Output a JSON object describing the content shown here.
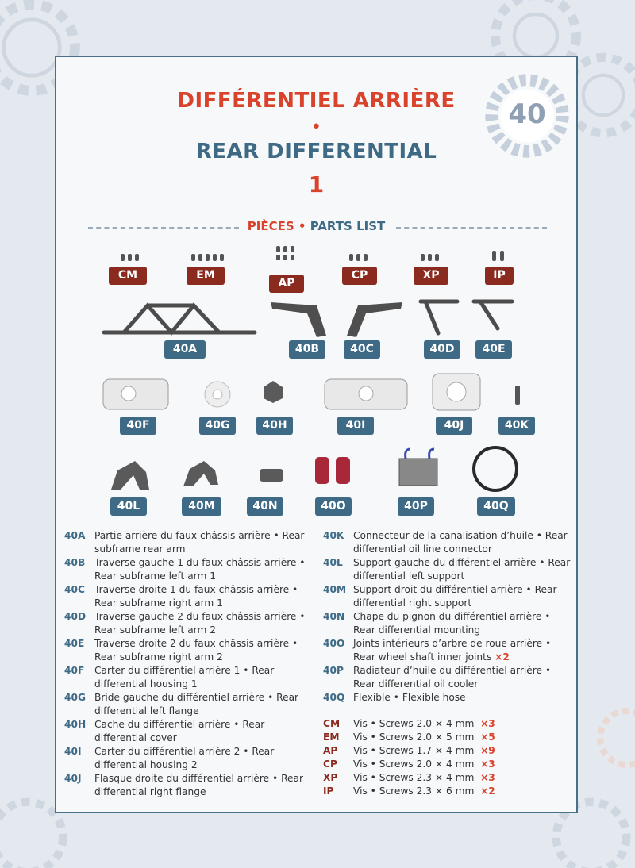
{
  "header": {
    "title_fr": "DIFFÉRENTIEL ARRIÈRE",
    "separator": "•",
    "title_en": "REAR DIFFERENTIAL",
    "part_number": "1",
    "issue_number": "40"
  },
  "parts_list": {
    "title_fr": "PIÈCES",
    "separator": "•",
    "title_en": "PARTS LIST"
  },
  "screw_tags": [
    "CM",
    "EM",
    "AP",
    "CP",
    "XP",
    "IP"
  ],
  "part_tags": [
    "40A",
    "40B",
    "40C",
    "40D",
    "40E",
    "40F",
    "40G",
    "40H",
    "40I",
    "40J",
    "40K",
    "40L",
    "40M",
    "40N",
    "40O",
    "40P",
    "40Q"
  ],
  "colors": {
    "accent_red": "#d9422b",
    "accent_blue": "#3e6a86",
    "screw_tag": "#8b2a1e"
  },
  "legend_left": [
    {
      "code": "40A",
      "text": "Partie arrière du faux châssis arrière • Rear subframe rear arm"
    },
    {
      "code": "40B",
      "text": "Traverse gauche 1 du faux châssis arrière • Rear subframe left arm 1"
    },
    {
      "code": "40C",
      "text": "Traverse droite 1 du faux châssis arrière • Rear subframe right arm 1"
    },
    {
      "code": "40D",
      "text": "Traverse gauche 2 du faux châssis arrière • Rear subframe left arm 2"
    },
    {
      "code": "40E",
      "text": "Traverse droite 2 du faux châssis arrière • Rear subframe right arm 2"
    },
    {
      "code": "40F",
      "text": "Carter du différentiel arrière 1 • Rear differential housing 1"
    },
    {
      "code": "40G",
      "text": "Bride gauche du différentiel arrière • Rear differential left flange"
    },
    {
      "code": "40H",
      "text": "Cache du différentiel arrière • Rear differential cover"
    },
    {
      "code": "40I",
      "text": "Carter du différentiel arrière 2 • Rear differential housing 2"
    },
    {
      "code": "40J",
      "text": "Flasque droite du différentiel arrière • Rear differential right flange"
    }
  ],
  "legend_right": [
    {
      "code": "40K",
      "text": "Connecteur de la canalisation d’huile • Rear differential oil line connector",
      "qty": ""
    },
    {
      "code": "40L",
      "text": "Support gauche du différentiel arrière • Rear differential left support",
      "qty": ""
    },
    {
      "code": "40M",
      "text": "Support droit du différentiel arrière • Rear differential right support",
      "qty": ""
    },
    {
      "code": "40N",
      "text": "Chape du pignon du différentiel arrière • Rear differential mounting",
      "qty": ""
    },
    {
      "code": "40O",
      "text": "Joints intérieurs d’arbre de roue arrière • Rear wheel shaft inner joints",
      "qty": "×2"
    },
    {
      "code": "40P",
      "text": "Radiateur d’huile du différentiel arrière • Rear differential oil cooler",
      "qty": ""
    },
    {
      "code": "40Q",
      "text": "Flexible • Flexible hose",
      "qty": ""
    }
  ],
  "screws": [
    {
      "code": "CM",
      "text": "Vis • Screws 2.0 × 4 mm",
      "qty": "×3"
    },
    {
      "code": "EM",
      "text": "Vis • Screws 2.0 × 5 mm",
      "qty": "×5"
    },
    {
      "code": "AP",
      "text": "Vis • Screws 1.7 × 4 mm",
      "qty": "×9"
    },
    {
      "code": "CP",
      "text": "Vis • Screws 2.0 × 4 mm",
      "qty": "×3"
    },
    {
      "code": "XP",
      "text": "Vis • Screws 2.3 × 4 mm",
      "qty": "×3"
    },
    {
      "code": "IP",
      "text": "Vis • Screws 2.3 × 6 mm",
      "qty": "×2"
    }
  ]
}
